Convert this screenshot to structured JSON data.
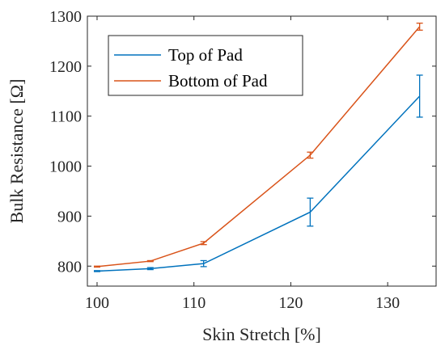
{
  "chart_data": {
    "type": "line",
    "xlabel": "Skin Stretch [%]",
    "ylabel": "Bulk Resistance [Ω]",
    "xlim": [
      99,
      135
    ],
    "ylim": [
      760,
      1300
    ],
    "xticks": [
      100,
      110,
      120,
      130
    ],
    "yticks": [
      800,
      900,
      1000,
      1100,
      1200,
      1300
    ],
    "grid": false,
    "legend_position": "top-left",
    "series": [
      {
        "name": "Top of Pad",
        "color": "#0072BD",
        "x": [
          100,
          105.5,
          111,
          122,
          133.3
        ],
        "y": [
          790,
          795,
          805,
          908,
          1140
        ],
        "error": [
          1,
          2,
          6,
          28,
          42
        ]
      },
      {
        "name": "Bottom of Pad",
        "color": "#D95319",
        "x": [
          100,
          105.5,
          111,
          122,
          133.3
        ],
        "y": [
          799,
          810,
          846,
          1022,
          1279
        ],
        "error": [
          1,
          1,
          3,
          6,
          7
        ]
      }
    ]
  }
}
